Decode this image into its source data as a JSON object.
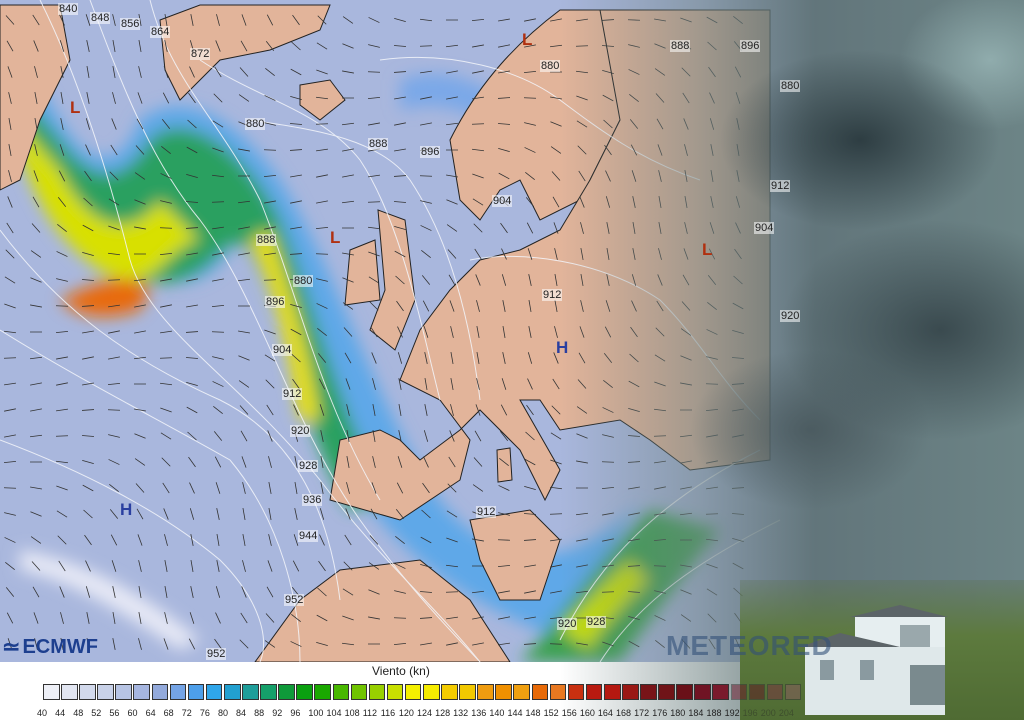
{
  "map": {
    "pressure_labels": [
      "840",
      "848",
      "856",
      "864",
      "872",
      "880",
      "888",
      "896",
      "880",
      "888",
      "896",
      "904",
      "880",
      "888",
      "896",
      "880",
      "904",
      "912",
      "920",
      "928",
      "936",
      "944",
      "952",
      "952",
      "912",
      "920",
      "928",
      "912",
      "904",
      "912",
      "920"
    ],
    "highs": [
      "H",
      "H"
    ],
    "lows": [
      "L",
      "L",
      "L",
      "L"
    ],
    "colors": {
      "ocean": "#a9b7dd",
      "land": "#e2b49a"
    }
  },
  "branding": {
    "ecmwf": "ECMWF",
    "watermark": "METEORED"
  },
  "legend": {
    "title": "Viento (kn)",
    "values": [
      "40",
      "44",
      "48",
      "52",
      "56",
      "60",
      "64",
      "68",
      "72",
      "76",
      "80",
      "84",
      "88",
      "92",
      "96",
      "100",
      "104",
      "108",
      "112",
      "116",
      "120",
      "124",
      "128",
      "132",
      "136",
      "140",
      "144",
      "148",
      "152",
      "156",
      "160",
      "164",
      "168",
      "172",
      "176",
      "180",
      "184",
      "188",
      "192",
      "196",
      "200",
      "204"
    ],
    "colors": [
      "#eef0f7",
      "#e2e6f2",
      "#d2d9ec",
      "#c8d1e8",
      "#b7c4e4",
      "#a6b6e0",
      "#93aadc",
      "#74a4e6",
      "#4d9fea",
      "#2fa6ea",
      "#22a0d0",
      "#1e9e9a",
      "#15a06a",
      "#0f9a3a",
      "#0aa010",
      "#1aa800",
      "#48b800",
      "#70c400",
      "#98d000",
      "#c8e000",
      "#f4f000",
      "#f6ec00",
      "#f4cc00",
      "#f2c800",
      "#ef9c10",
      "#f09000",
      "#f0a010",
      "#e86a08",
      "#e87820",
      "#c83010",
      "#b81a10",
      "#b41810",
      "#9a1814",
      "#781418",
      "#701418",
      "#6a1018",
      "#701424",
      "#7a1a2c",
      "#6a1428",
      "#5e1422",
      "#7a3040",
      "#8a5a60"
    ]
  }
}
